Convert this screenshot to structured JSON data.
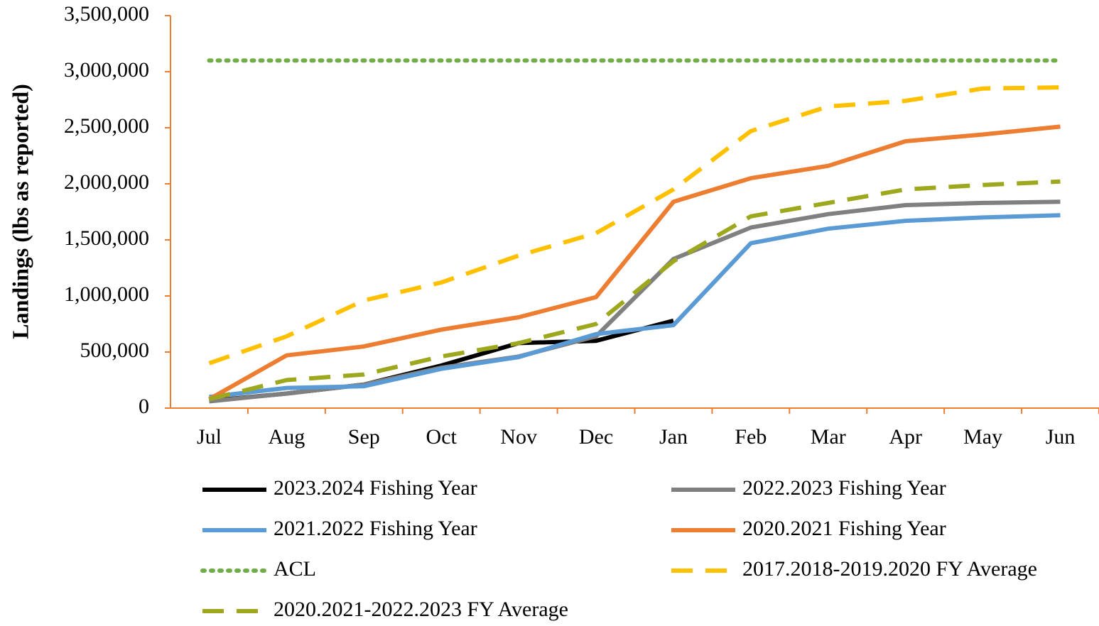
{
  "chart_data": {
    "type": "line",
    "y_label": "Landings (lbs as reported)",
    "categories": [
      "Jul",
      "Aug",
      "Sep",
      "Oct",
      "Nov",
      "Dec",
      "Jan",
      "Feb",
      "Mar",
      "Apr",
      "May",
      "Jun"
    ],
    "series": [
      {
        "name": "2023.2024 Fishing Year",
        "color": "#000000",
        "style": "solid",
        "values": [
          65000,
          130000,
          210000,
          380000,
          580000,
          600000,
          780000,
          null,
          null,
          null,
          null,
          null
        ]
      },
      {
        "name": "2022.2023 Fishing Year",
        "color": "#808080",
        "style": "solid",
        "values": [
          60000,
          130000,
          210000,
          360000,
          460000,
          640000,
          1330000,
          1610000,
          1730000,
          1810000,
          1830000,
          1840000
        ]
      },
      {
        "name": "2021.2022 Fishing Year",
        "color": "#5b9bd5",
        "style": "solid",
        "values": [
          100000,
          180000,
          195000,
          350000,
          455000,
          660000,
          740000,
          1470000,
          1600000,
          1670000,
          1700000,
          1720000
        ]
      },
      {
        "name": "2020.2021 Fishing Year",
        "color": "#ed7d31",
        "style": "solid",
        "values": [
          80000,
          470000,
          550000,
          700000,
          810000,
          990000,
          1840000,
          2050000,
          2160000,
          2380000,
          2440000,
          2510000
        ]
      },
      {
        "name": "ACL",
        "color": "#70ad47",
        "style": "dotted",
        "values": [
          3100000,
          3100000,
          3100000,
          3100000,
          3100000,
          3100000,
          3100000,
          3100000,
          3100000,
          3100000,
          3100000,
          3100000
        ]
      },
      {
        "name": "2017.2018-2019.2020 FY Average",
        "color": "#ffc000",
        "style": "dashed",
        "values": [
          400000,
          640000,
          960000,
          1120000,
          1360000,
          1560000,
          1950000,
          2470000,
          2690000,
          2740000,
          2850000,
          2860000
        ]
      },
      {
        "name": "2020.2021-2022.2023 FY Average",
        "color": "#9ea81e",
        "style": "dashed",
        "values": [
          80000,
          250000,
          300000,
          460000,
          580000,
          750000,
          1310000,
          1710000,
          1830000,
          1950000,
          1990000,
          2020000
        ]
      }
    ],
    "ylim": [
      0,
      3500000
    ],
    "yticks": [
      0,
      {
        "value": 500000,
        "label": "500,000"
      },
      {
        "value": 1000000,
        "label": "1,000,000"
      },
      {
        "value": 1500000,
        "label": "1,500,000"
      },
      {
        "value": 2000000,
        "label": "2,000,000"
      },
      {
        "value": 2500000,
        "label": "2,500,000"
      },
      {
        "value": 3000000,
        "label": "3,000,000"
      },
      {
        "value": 3500000,
        "label": "3,500,000"
      }
    ],
    "grid": false,
    "legend": "bottom",
    "axis_color": "#ed7d31"
  }
}
